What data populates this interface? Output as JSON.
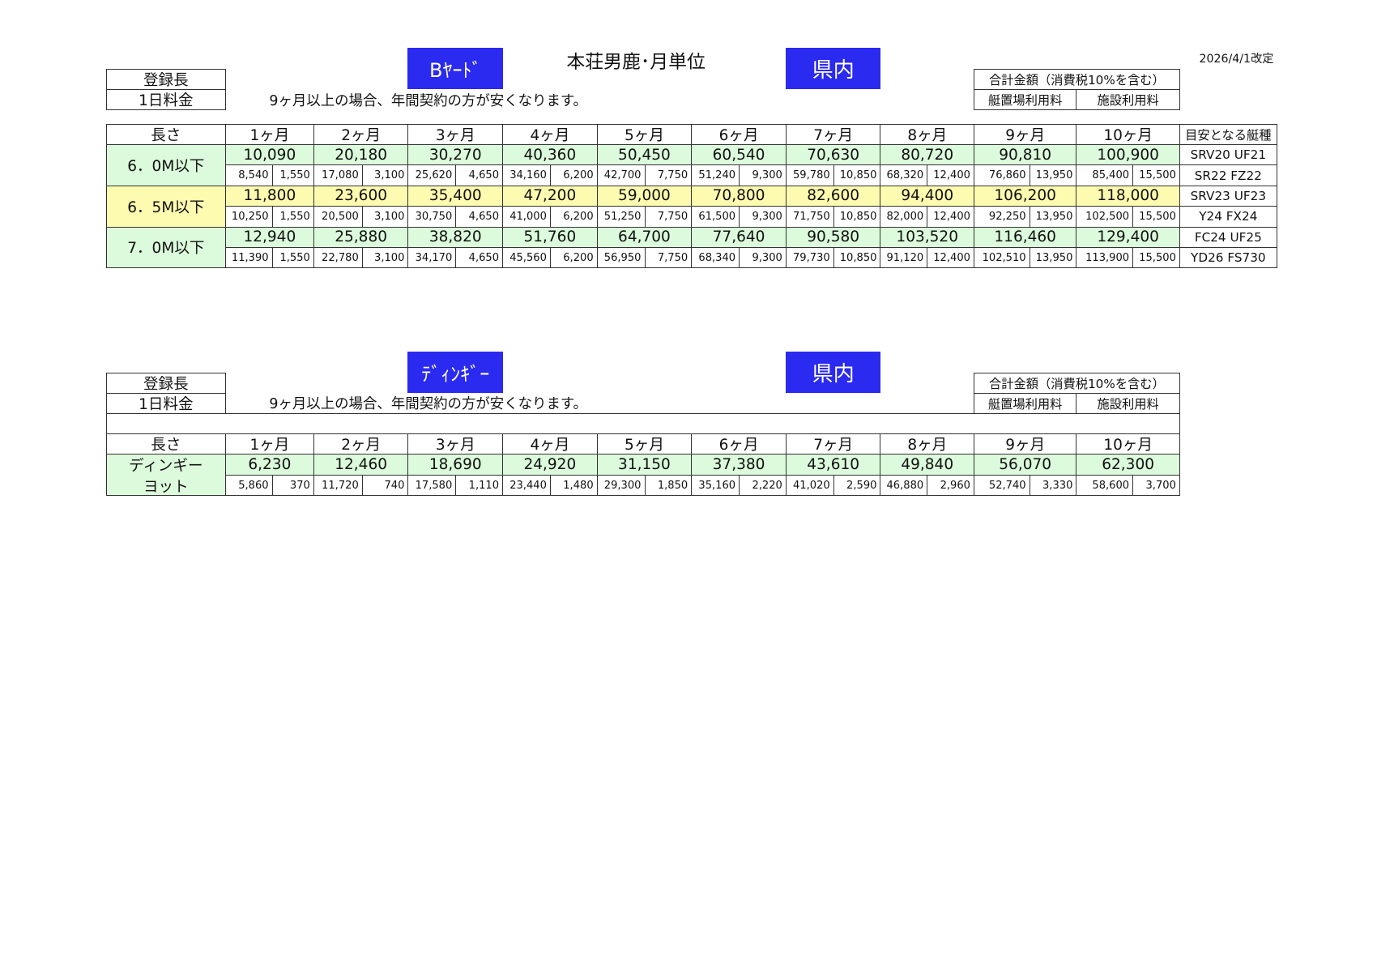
{
  "header": {
    "title": "本荘男鹿･月単位",
    "revised": "2026/4/1改定"
  },
  "sections": [
    {
      "badge": "Bﾔｰﾄﾞ",
      "region": "県内",
      "label_length": "登録長",
      "label_daily": "1日料金",
      "note": "9ヶ月以上の場合、年間契約の方が安くなります。",
      "total_label": "合計金額（消費税10%を含む）",
      "sub_labels": [
        "艇置場利用料",
        "施設利用料"
      ],
      "table": {
        "header": [
          "長さ",
          "1ヶ月",
          "2ヶ月",
          "3ヶ月",
          "4ヶ月",
          "5ヶ月",
          "6ヶ月",
          "7ヶ月",
          "8ヶ月",
          "9ヶ月",
          "10ヶ月",
          "目安となる艇種"
        ],
        "rows": [
          {
            "label": [
              "6．0M以下"
            ],
            "color": "#dcfadc",
            "totals": [
              "10,090",
              "20,180",
              "30,270",
              "40,360",
              "50,450",
              "60,540",
              "70,630",
              "80,720",
              "90,810",
              "100,900"
            ],
            "parts": [
              [
                "8,540",
                "1,550"
              ],
              [
                "17,080",
                "3,100"
              ],
              [
                "25,620",
                "4,650"
              ],
              [
                "34,160",
                "6,200"
              ],
              [
                "42,700",
                "7,750"
              ],
              [
                "51,240",
                "9,300"
              ],
              [
                "59,780",
                "10,850"
              ],
              [
                "68,320",
                "12,400"
              ],
              [
                "76,860",
                "13,950"
              ],
              [
                "85,400",
                "15,500"
              ]
            ],
            "models": [
              "SRV20 UF21",
              "SR22 FZ22"
            ]
          },
          {
            "label": [
              "6．5M以下"
            ],
            "color": "#fdfbb0",
            "totals": [
              "11,800",
              "23,600",
              "35,400",
              "47,200",
              "59,000",
              "70,800",
              "82,600",
              "94,400",
              "106,200",
              "118,000"
            ],
            "parts": [
              [
                "10,250",
                "1,550"
              ],
              [
                "20,500",
                "3,100"
              ],
              [
                "30,750",
                "4,650"
              ],
              [
                "41,000",
                "6,200"
              ],
              [
                "51,250",
                "7,750"
              ],
              [
                "61,500",
                "9,300"
              ],
              [
                "71,750",
                "10,850"
              ],
              [
                "82,000",
                "12,400"
              ],
              [
                "92,250",
                "13,950"
              ],
              [
                "102,500",
                "15,500"
              ]
            ],
            "models": [
              "SRV23 UF23",
              "Y24 FX24"
            ]
          },
          {
            "label": [
              "7．0M以下"
            ],
            "color": "#dcfadc",
            "totals": [
              "12,940",
              "25,880",
              "38,820",
              "51,760",
              "64,700",
              "77,640",
              "90,580",
              "103,520",
              "116,460",
              "129,400"
            ],
            "parts": [
              [
                "11,390",
                "1,550"
              ],
              [
                "22,780",
                "3,100"
              ],
              [
                "34,170",
                "4,650"
              ],
              [
                "45,560",
                "6,200"
              ],
              [
                "56,950",
                "7,750"
              ],
              [
                "68,340",
                "9,300"
              ],
              [
                "79,730",
                "10,850"
              ],
              [
                "91,120",
                "12,400"
              ],
              [
                "102,510",
                "13,950"
              ],
              [
                "113,900",
                "15,500"
              ]
            ],
            "models": [
              "FC24 UF25",
              "YD26 FS730"
            ]
          }
        ]
      }
    },
    {
      "badge": "ﾃﾞｨﾝｷﾞｰ",
      "region": "県内",
      "label_length": "登録長",
      "label_daily": "1日料金",
      "note": "9ヶ月以上の場合、年間契約の方が安くなります。",
      "total_label": "合計金額（消費税10%を含む）",
      "sub_labels": [
        "艇置場利用料",
        "施設利用料"
      ],
      "table": {
        "header": [
          "長さ",
          "1ヶ月",
          "2ヶ月",
          "3ヶ月",
          "4ヶ月",
          "5ヶ月",
          "6ヶ月",
          "7ヶ月",
          "8ヶ月",
          "9ヶ月",
          "10ヶ月"
        ],
        "rows": [
          {
            "label": [
              "ディンギー",
              "ヨット"
            ],
            "color": "#dcfadc",
            "totals": [
              "6,230",
              "12,460",
              "18,690",
              "24,920",
              "31,150",
              "37,380",
              "43,610",
              "49,840",
              "56,070",
              "62,300"
            ],
            "parts": [
              [
                "5,860",
                "370"
              ],
              [
                "11,720",
                "740"
              ],
              [
                "17,580",
                "1,110"
              ],
              [
                "23,440",
                "1,480"
              ],
              [
                "29,300",
                "1,850"
              ],
              [
                "35,160",
                "2,220"
              ],
              [
                "41,020",
                "2,590"
              ],
              [
                "46,880",
                "2,960"
              ],
              [
                "52,740",
                "3,330"
              ],
              [
                "58,600",
                "3,700"
              ]
            ]
          }
        ]
      }
    }
  ]
}
